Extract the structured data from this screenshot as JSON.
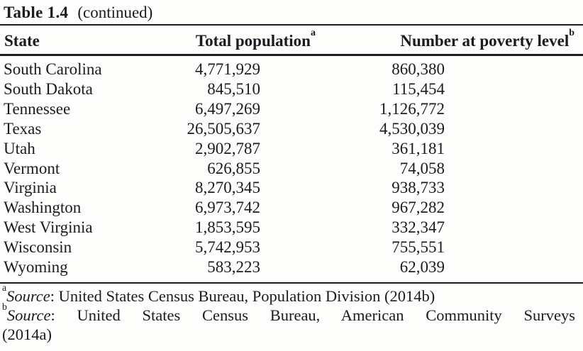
{
  "title": {
    "label": "Table 1.4",
    "suffix": "(continued)"
  },
  "table": {
    "columns": [
      {
        "label": "State",
        "sup": ""
      },
      {
        "label": "Total population",
        "sup": "a"
      },
      {
        "label": "Number at poverty level",
        "sup": "b"
      }
    ],
    "rows": [
      {
        "state": "South Carolina",
        "population": "4,771,929",
        "poverty": "860,380"
      },
      {
        "state": "South Dakota",
        "population": "845,510",
        "poverty": "115,454"
      },
      {
        "state": "Tennessee",
        "population": "6,497,269",
        "poverty": "1,126,772"
      },
      {
        "state": "Texas",
        "population": "26,505,637",
        "poverty": "4,530,039"
      },
      {
        "state": "Utah",
        "population": "2,902,787",
        "poverty": "361,181"
      },
      {
        "state": "Vermont",
        "population": "626,855",
        "poverty": "74,058"
      },
      {
        "state": "Virginia",
        "population": "8,270,345",
        "poverty": "938,733"
      },
      {
        "state": "Washington",
        "population": "6,973,742",
        "poverty": "967,282"
      },
      {
        "state": "West Virginia",
        "population": "1,853,595",
        "poverty": "332,347"
      },
      {
        "state": "Wisconsin",
        "population": "5,742,953",
        "poverty": "755,551"
      },
      {
        "state": "Wyoming",
        "population": "583,223",
        "poverty": "62,039"
      }
    ]
  },
  "footnotes": [
    {
      "marker": "a",
      "source_label": "Source",
      "text": ": United States Census Bureau, Population Division (2014b)"
    },
    {
      "marker": "b",
      "source_label": "Source",
      "text": ": United States Census Bureau, American Community Surveys",
      "text_overflow": "(2014a)"
    }
  ],
  "colors": {
    "text": "#1b1b22",
    "rule": "#1d1d24",
    "background": "#fdfdfc"
  }
}
